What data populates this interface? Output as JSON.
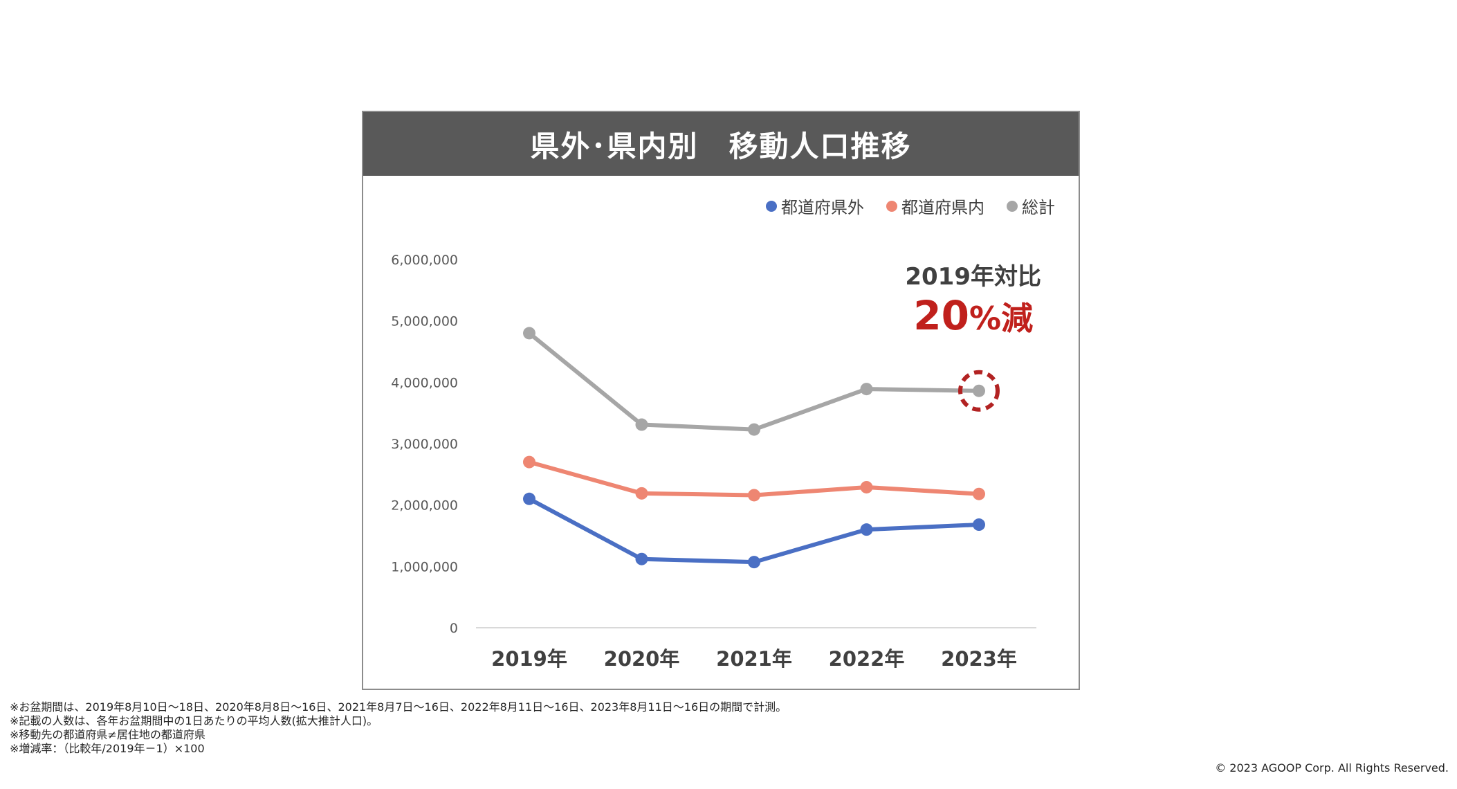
{
  "title": "県外･県内別　移動人口推移",
  "callout": {
    "line1": "2019年対比",
    "value": "20",
    "unit": "%減"
  },
  "colors": {
    "out_of_prefecture": "#4a6fc4",
    "within_prefecture": "#ee8672",
    "total": "#a6a6a6",
    "highlight": "#b22222"
  },
  "chart_data": {
    "type": "line",
    "categories": [
      "2019年",
      "2020年",
      "2021年",
      "2022年",
      "2023年"
    ],
    "yticks": [
      "6,000,000",
      "5,000,000",
      "4,000,000",
      "3,000,000",
      "2,000,000",
      "1,000,000",
      "0"
    ],
    "ylim": [
      0,
      6000000
    ],
    "grid": false,
    "legend_position": "top-right",
    "series": [
      {
        "name": "都道府県外",
        "color": "#4a6fc4",
        "values": [
          2100000,
          1120000,
          1070000,
          1600000,
          1680000
        ]
      },
      {
        "name": "都道府県内",
        "color": "#ee8672",
        "values": [
          2700000,
          2190000,
          2160000,
          2290000,
          2180000
        ]
      },
      {
        "name": "総計",
        "color": "#a6a6a6",
        "values": [
          4800000,
          3310000,
          3230000,
          3890000,
          3860000
        ]
      }
    ],
    "highlight_point": {
      "series": "総計",
      "category": "2023年"
    }
  },
  "footnotes": [
    "※お盆期間は、2019年8月10日～18日、2020年8月8日～16日、2021年8月7日～16日、2022年8月11日～16日、2023年8月11日～16日の期間で計測。",
    "※記載の人数は、各年お盆期間中の1日あたりの平均人数(拡大推計人口)。",
    "※移動先の都道府県≠居住地の都道府県",
    "※増減率：（比較年/2019年－1）×100"
  ],
  "copyright": "© 2023 AGOOP Corp. All Rights Reserved."
}
